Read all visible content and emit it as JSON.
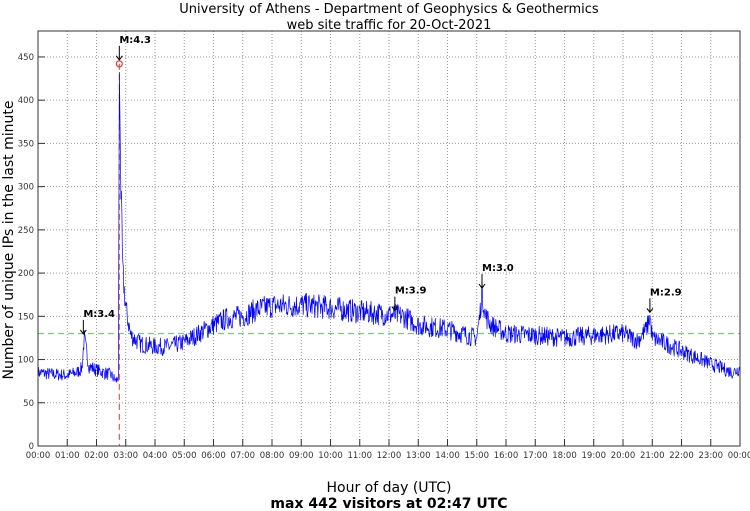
{
  "chart_data": {
    "type": "line",
    "title": "University of Athens - Department of Geophysics & Geothermics",
    "subtitle": "web site traffic for 20-Oct-2021",
    "xlabel": "Hour of day (UTC)",
    "ylabel": "Number of unique IPs in the last minute",
    "footer": "max 442 visitors at 02:47 UTC",
    "xlim": [
      0,
      24
    ],
    "ylim": [
      0,
      480
    ],
    "grid": true,
    "x_tick_labels": [
      "00:00",
      "01:00",
      "02:00",
      "03:00",
      "04:00",
      "05:00",
      "06:00",
      "07:00",
      "08:00",
      "09:00",
      "10:00",
      "11:00",
      "12:00",
      "13:00",
      "14:00",
      "15:00",
      "16:00",
      "17:00",
      "18:00",
      "19:00",
      "20:00",
      "21:00",
      "22:00",
      "23:00",
      "00:00"
    ],
    "y_ticks": [
      0,
      50,
      100,
      150,
      200,
      250,
      300,
      350,
      400,
      450
    ],
    "series": [
      {
        "name": "traffic",
        "color": "#0000ff",
        "x": [
          0,
          0.5,
          1,
          1.33,
          1.5,
          1.58,
          1.66,
          1.75,
          2,
          2.5,
          2.67,
          2.75,
          2.78,
          2.83,
          2.9,
          3,
          3.17,
          3.5,
          4,
          4.5,
          5,
          5.5,
          6,
          6.5,
          7,
          7.5,
          8,
          9,
          10,
          11,
          12,
          12.5,
          13,
          14,
          14.5,
          15,
          15.1,
          15.18,
          15.3,
          15.5,
          16,
          17,
          18,
          19,
          20,
          20.5,
          20.8,
          20.92,
          21,
          21.5,
          22,
          23,
          23.75,
          24
        ],
        "y": [
          85,
          83,
          82,
          85,
          90,
          125,
          108,
          92,
          88,
          82,
          75,
          80,
          442,
          300,
          200,
          160,
          128,
          118,
          115,
          115,
          120,
          130,
          140,
          148,
          150,
          158,
          162,
          163,
          160,
          155,
          152,
          150,
          140,
          135,
          130,
          125,
          150,
          178,
          150,
          140,
          130,
          128,
          125,
          128,
          130,
          122,
          135,
          150,
          125,
          118,
          110,
          95,
          85,
          90
        ]
      }
    ],
    "mean_line": {
      "value": 130,
      "color": "#55cc55"
    },
    "max_marker": {
      "x": 2.78,
      "y": 442,
      "color": "#ff3333"
    },
    "annotations": [
      {
        "label": "M:3.4",
        "x": 1.55,
        "y": 125
      },
      {
        "label": "M:4.3",
        "x": 2.78,
        "y": 442
      },
      {
        "label": "M:3.9",
        "x": 12.2,
        "y": 152
      },
      {
        "label": "M:3.0",
        "x": 15.18,
        "y": 178
      },
      {
        "label": "M:2.9",
        "x": 20.92,
        "y": 150
      }
    ]
  }
}
